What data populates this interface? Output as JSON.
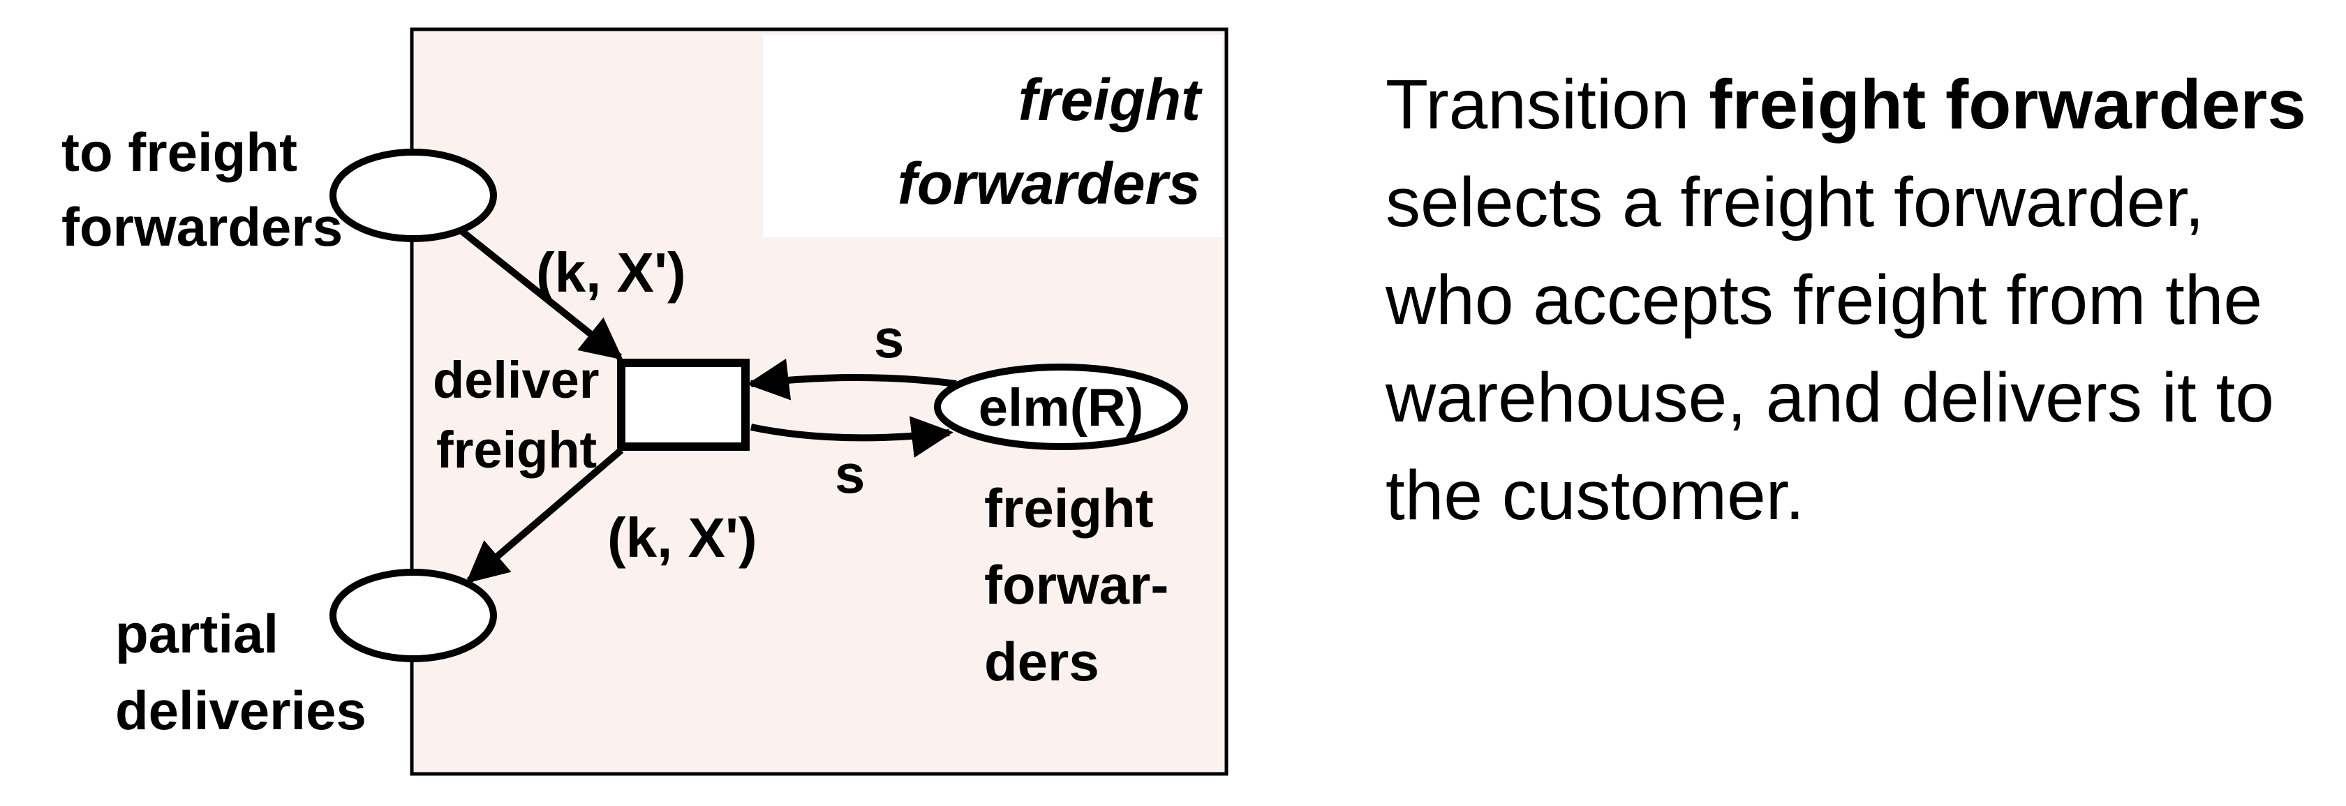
{
  "colors": {
    "module_fill": "#fbf1ef",
    "title_box_fill": "#ffffff",
    "stroke": "#000000"
  },
  "module": {
    "title_line1": "freight",
    "title_line2": "forwarders"
  },
  "places": {
    "to_freight_forwarders": {
      "line1": "to freight",
      "line2": "forwarders"
    },
    "partial_deliveries": {
      "line1": "partial",
      "line2": "deliveries"
    },
    "freight_forwarders": {
      "token": "elm(R)",
      "line1": "freight",
      "line2": "forwar-",
      "line3": "ders"
    }
  },
  "transition": {
    "line1": "deliver",
    "line2": "freight"
  },
  "arcs": {
    "in_label": "(k, X')",
    "out_label": "(k, X')",
    "loop_top_label": "s",
    "loop_bottom_label": "s"
  },
  "description": {
    "prefix": "Transition ",
    "bold": "freight forwarders",
    "suffix": " selects a freight forwarder, who accepts freight from the warehouse, and delivers it to the customer."
  }
}
